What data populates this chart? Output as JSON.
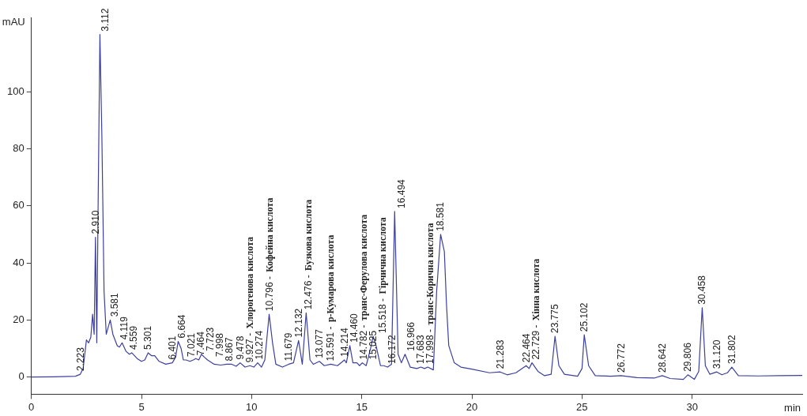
{
  "chart_data": {
    "type": "line",
    "xlabel": "min",
    "ylabel": "mAU",
    "xlim": [
      0,
      35
    ],
    "ylim": [
      -6,
      126
    ],
    "xticks": [
      0,
      5,
      10,
      15,
      20,
      25,
      30
    ],
    "yticks": [
      0,
      20,
      40,
      60,
      80,
      100
    ],
    "grid": false,
    "legend": false,
    "marker": "none",
    "line_style": "solid",
    "series": [
      {
        "color": "#3c409c",
        "x": [
          0,
          1,
          2,
          2.223,
          2.35,
          2.5,
          2.6,
          2.7,
          2.78,
          2.85,
          2.91,
          2.97,
          3.03,
          3.112,
          3.2,
          3.3,
          3.4,
          3.581,
          3.7,
          3.9,
          4.0,
          4.119,
          4.3,
          4.45,
          4.559,
          4.8,
          5.0,
          5.15,
          5.301,
          5.45,
          5.6,
          5.8,
          6.1,
          6.401,
          6.55,
          6.664,
          6.8,
          6.9,
          7.021,
          7.2,
          7.35,
          7.464,
          7.6,
          7.723,
          7.85,
          7.998,
          8.3,
          8.6,
          8.867,
          9.1,
          9.3,
          9.478,
          9.7,
          9.927,
          10.1,
          10.274,
          10.45,
          10.6,
          10.796,
          10.95,
          11.1,
          11.4,
          11.679,
          11.9,
          12.132,
          12.3,
          12.476,
          12.65,
          12.8,
          13.077,
          13.3,
          13.591,
          13.9,
          14.214,
          14.3,
          14.46,
          14.6,
          14.782,
          14.9,
          15.025,
          15.2,
          15.4,
          15.518,
          15.65,
          15.85,
          16.0,
          16.172,
          16.35,
          16.494,
          16.65,
          16.8,
          16.966,
          17.2,
          17.5,
          17.683,
          17.85,
          17.998,
          18.25,
          18.4,
          18.581,
          18.75,
          18.85,
          18.95,
          19.2,
          19.5,
          20,
          20.8,
          21.283,
          21.6,
          22.0,
          22.464,
          22.6,
          22.729,
          23.0,
          23.3,
          23.6,
          23.775,
          23.95,
          24.2,
          24.8,
          25.0,
          25.102,
          25.3,
          25.6,
          26.3,
          26.772,
          27.5,
          28.3,
          28.642,
          29.0,
          29.6,
          29.806,
          30.1,
          30.3,
          30.458,
          30.6,
          30.8,
          31.12,
          31.35,
          31.6,
          31.802,
          32.1,
          33,
          34,
          35
        ],
        "values": [
          0,
          0.1,
          0.3,
          1,
          3,
          13,
          12,
          14,
          22,
          15,
          49,
          12,
          60,
          120,
          85,
          30,
          15,
          20,
          15,
          11,
          10.5,
          12,
          9,
          8,
          8.5,
          6.5,
          5.5,
          6,
          8.5,
          7.5,
          7.5,
          5.5,
          4.5,
          5,
          7,
          12.5,
          10,
          6,
          6,
          5.5,
          6,
          6.5,
          6,
          8,
          7,
          6,
          4.5,
          4.2,
          4.5,
          4.5,
          3.8,
          5,
          3.5,
          4,
          3.5,
          5,
          3.5,
          6,
          22,
          12,
          4.5,
          3.5,
          4.5,
          5,
          12.8,
          4.5,
          22.5,
          6,
          4.5,
          5.5,
          4,
          4.5,
          4,
          6,
          5,
          11,
          5,
          5,
          4,
          5,
          4,
          10,
          14.3,
          11,
          4,
          4,
          3.5,
          4.5,
          58,
          8,
          5,
          8,
          3.5,
          3,
          3.5,
          3,
          3.5,
          2.5,
          30,
          50,
          44,
          25,
          11,
          5,
          3.5,
          2.8,
          1.5,
          1.8,
          0.8,
          1.5,
          4,
          3,
          5,
          2,
          0.5,
          1,
          14.3,
          4,
          1,
          0.3,
          3,
          14.8,
          4,
          0.5,
          0.3,
          0.5,
          -0.2,
          -0.3,
          0.5,
          -0.5,
          -0.8,
          0.8,
          -0.8,
          2,
          24.3,
          4,
          1,
          1.8,
          0.8,
          1.5,
          3.5,
          0.5,
          0.4,
          0.5,
          0.6
        ]
      }
    ],
    "annotations": [
      {
        "text": "2.223",
        "x": 2.223,
        "y": 1
      },
      {
        "text": "2.910",
        "x": 2.91,
        "y": 49
      },
      {
        "text": "3.112",
        "x": 3.112,
        "y": 120
      },
      {
        "text": "3.581",
        "x": 3.581,
        "y": 20
      },
      {
        "text": "4.119",
        "x": 4.119,
        "y": 12
      },
      {
        "text": "4.559",
        "x": 4.559,
        "y": 8.5
      },
      {
        "text": "5.301",
        "x": 5.301,
        "y": 8.5
      },
      {
        "text": "6.401",
        "x": 6.401,
        "y": 5
      },
      {
        "text": "6.664",
        "x": 6.664,
        "y": 12.5
      },
      {
        "text": "7.021",
        "x": 7.021,
        "y": 6
      },
      {
        "text": "7.464",
        "x": 7.464,
        "y": 6.5
      },
      {
        "text": "7.723",
        "x": 7.723,
        "y": 8
      },
      {
        "text": "7.998",
        "x": 7.998,
        "y": 6
      },
      {
        "text": "8.867",
        "x": 8.867,
        "y": 4.5
      },
      {
        "text": "9.478",
        "x": 9.478,
        "y": 5
      },
      {
        "text": "9.927 - Хлорогенова кислота",
        "x": 9.927,
        "y": 4
      },
      {
        "text": "10.274",
        "x": 10.274,
        "y": 5
      },
      {
        "text": "10.796 - Кофейна кислота",
        "x": 10.796,
        "y": 22
      },
      {
        "text": "11.679",
        "x": 11.679,
        "y": 4.5
      },
      {
        "text": "12.132",
        "x": 12.132,
        "y": 12.8
      },
      {
        "text": "12.476 - Бузкова кислота",
        "x": 12.476,
        "y": 22.5
      },
      {
        "text": "13.077",
        "x": 13.077,
        "y": 5.5
      },
      {
        "text": "13.591 - p-Кумарова кислота",
        "x": 13.591,
        "y": 4.5
      },
      {
        "text": "14.214",
        "x": 14.214,
        "y": 6
      },
      {
        "text": "14.460",
        "x": 14.46,
        "y": 11
      },
      {
        "text": "14.782 - транс-Ферулова кислота",
        "x": 14.782,
        "y": 5
      },
      {
        "text": "15.025",
        "x": 15.025,
        "y": 5
      },
      {
        "text": "15.518 - Гірчична кислота",
        "x": 15.518,
        "y": 14.3
      },
      {
        "text": "16.172",
        "x": 16.172,
        "y": 3.5
      },
      {
        "text": "16.494",
        "x": 16.494,
        "y": 58
      },
      {
        "text": "16.966",
        "x": 16.966,
        "y": 8
      },
      {
        "text": "17.683",
        "x": 17.683,
        "y": 3.5
      },
      {
        "text": "17.998 - транс-Корична кислота",
        "x": 17.998,
        "y": 3.5
      },
      {
        "text": "18.581",
        "x": 18.581,
        "y": 50
      },
      {
        "text": "21.283",
        "x": 21.283,
        "y": 1.8
      },
      {
        "text": "22.464",
        "x": 22.464,
        "y": 4
      },
      {
        "text": "22.729 - Хінна кислота",
        "x": 22.729,
        "y": 5
      },
      {
        "text": "23.775",
        "x": 23.775,
        "y": 14.3
      },
      {
        "text": "25.102",
        "x": 25.102,
        "y": 14.8
      },
      {
        "text": "26.772",
        "x": 26.772,
        "y": 0.5
      },
      {
        "text": "28.642",
        "x": 28.642,
        "y": 0.5
      },
      {
        "text": "29.806",
        "x": 29.806,
        "y": 0.8
      },
      {
        "text": "30.458",
        "x": 30.458,
        "y": 24.3
      },
      {
        "text": "31.120",
        "x": 31.12,
        "y": 1.8
      },
      {
        "text": "31.802",
        "x": 31.802,
        "y": 3.5
      }
    ]
  }
}
